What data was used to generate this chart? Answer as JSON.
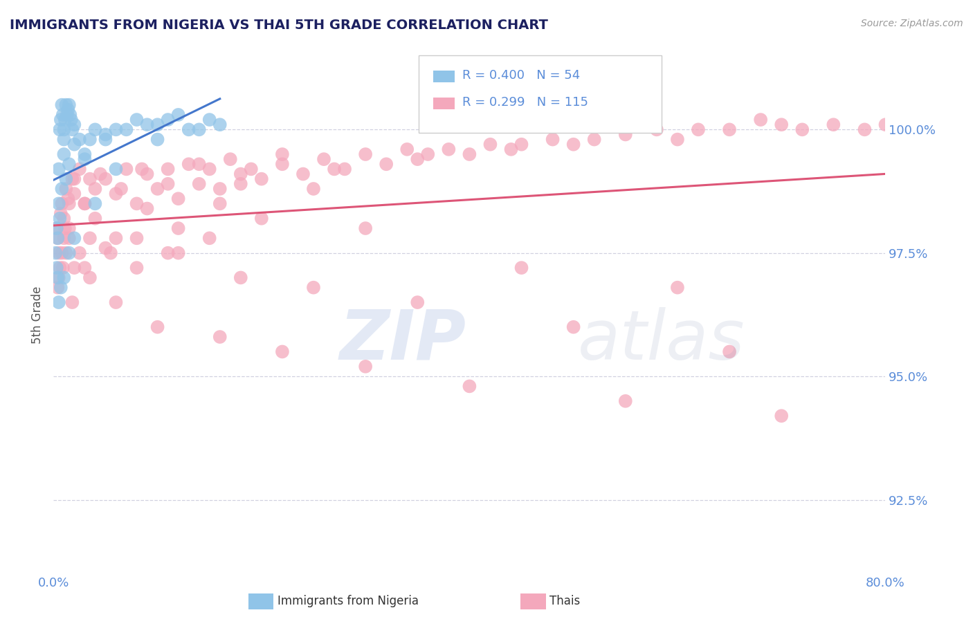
{
  "title": "IMMIGRANTS FROM NIGERIA VS THAI 5TH GRADE CORRELATION CHART",
  "source_text": "Source: ZipAtlas.com",
  "ylabel": "5th Grade",
  "xlim": [
    0.0,
    80.0
  ],
  "ylim": [
    91.0,
    101.5
  ],
  "yticks": [
    92.5,
    95.0,
    97.5,
    100.0
  ],
  "ytick_labels": [
    "92.5%",
    "95.0%",
    "97.5%",
    "100.0%"
  ],
  "color_nigeria": "#90C4E8",
  "color_thai": "#F4A8BC",
  "color_nigeria_line": "#4477CC",
  "color_thai_line": "#DD5577",
  "color_axis_labels": "#5B8DD9",
  "color_title": "#1C2060",
  "color_grid": "#CCCCDD",
  "nigeria_points_x": [
    0.2,
    0.3,
    0.4,
    0.5,
    0.5,
    0.6,
    0.7,
    0.8,
    0.9,
    1.0,
    1.0,
    1.1,
    1.2,
    1.3,
    1.4,
    1.5,
    1.6,
    1.7,
    1.8,
    2.0,
    2.5,
    3.0,
    3.5,
    4.0,
    5.0,
    6.0,
    8.0,
    10.0,
    12.0,
    15.0,
    0.3,
    0.4,
    0.6,
    0.8,
    1.0,
    1.2,
    1.5,
    2.0,
    3.0,
    5.0,
    7.0,
    9.0,
    11.0,
    14.0,
    0.5,
    0.7,
    1.0,
    1.5,
    2.0,
    4.0,
    6.0,
    10.0,
    13.0,
    16.0
  ],
  "nigeria_points_y": [
    97.5,
    98.0,
    97.8,
    99.2,
    98.5,
    100.0,
    100.2,
    100.5,
    100.3,
    100.0,
    99.8,
    100.2,
    100.5,
    100.3,
    100.4,
    100.5,
    100.3,
    100.2,
    100.0,
    100.1,
    99.8,
    99.5,
    99.8,
    100.0,
    99.8,
    100.0,
    100.2,
    100.1,
    100.3,
    100.2,
    97.2,
    97.0,
    98.2,
    98.8,
    99.5,
    99.0,
    99.3,
    99.7,
    99.4,
    99.9,
    100.0,
    100.1,
    100.2,
    100.0,
    96.5,
    96.8,
    97.0,
    97.5,
    97.8,
    98.5,
    99.2,
    99.8,
    100.0,
    100.1
  ],
  "thai_points_x": [
    0.3,
    0.5,
    0.8,
    1.0,
    1.2,
    1.5,
    1.8,
    2.0,
    2.5,
    3.0,
    3.5,
    4.0,
    5.0,
    6.0,
    7.0,
    8.0,
    9.0,
    10.0,
    11.0,
    12.0,
    13.0,
    14.0,
    15.0,
    16.0,
    17.0,
    18.0,
    19.0,
    20.0,
    22.0,
    24.0,
    26.0,
    28.0,
    30.0,
    32.0,
    34.0,
    35.0,
    36.0,
    38.0,
    40.0,
    42.0,
    44.0,
    45.0,
    48.0,
    50.0,
    52.0,
    55.0,
    58.0,
    60.0,
    62.0,
    65.0,
    68.0,
    70.0,
    72.0,
    75.0,
    78.0,
    80.0,
    0.4,
    0.7,
    1.1,
    1.4,
    2.0,
    3.0,
    4.5,
    6.5,
    8.5,
    11.0,
    14.0,
    18.0,
    22.0,
    27.0,
    0.6,
    1.0,
    1.5,
    2.5,
    4.0,
    6.0,
    9.0,
    12.0,
    16.0,
    20.0,
    25.0,
    0.5,
    1.2,
    2.0,
    3.5,
    5.5,
    8.0,
    11.0,
    15.0,
    30.0,
    45.0,
    60.0,
    0.8,
    1.5,
    3.0,
    5.0,
    8.0,
    12.0,
    18.0,
    25.0,
    35.0,
    50.0,
    65.0,
    0.4,
    0.9,
    1.8,
    3.5,
    6.0,
    10.0,
    16.0,
    22.0,
    30.0,
    40.0,
    55.0,
    70.0
  ],
  "thai_points_y": [
    98.0,
    97.5,
    98.5,
    98.2,
    98.8,
    98.5,
    99.0,
    98.7,
    99.2,
    98.5,
    99.0,
    98.8,
    99.0,
    98.7,
    99.2,
    98.5,
    99.1,
    98.8,
    99.2,
    98.6,
    99.3,
    98.9,
    99.2,
    98.8,
    99.4,
    98.9,
    99.2,
    99.0,
    99.3,
    99.1,
    99.4,
    99.2,
    99.5,
    99.3,
    99.6,
    99.4,
    99.5,
    99.6,
    99.5,
    99.7,
    99.6,
    99.7,
    99.8,
    99.7,
    99.8,
    99.9,
    100.0,
    99.8,
    100.0,
    100.0,
    100.2,
    100.1,
    100.0,
    100.1,
    100.0,
    100.1,
    97.8,
    98.3,
    98.0,
    98.6,
    99.0,
    98.5,
    99.1,
    98.8,
    99.2,
    98.9,
    99.3,
    99.1,
    99.5,
    99.2,
    97.2,
    97.8,
    98.0,
    97.5,
    98.2,
    97.8,
    98.4,
    98.0,
    98.5,
    98.2,
    98.8,
    97.0,
    97.5,
    97.2,
    97.8,
    97.5,
    97.8,
    97.5,
    97.8,
    98.0,
    97.2,
    96.8,
    97.5,
    97.8,
    97.2,
    97.6,
    97.2,
    97.5,
    97.0,
    96.8,
    96.5,
    96.0,
    95.5,
    96.8,
    97.2,
    96.5,
    97.0,
    96.5,
    96.0,
    95.8,
    95.5,
    95.2,
    94.8,
    94.5,
    94.2
  ]
}
